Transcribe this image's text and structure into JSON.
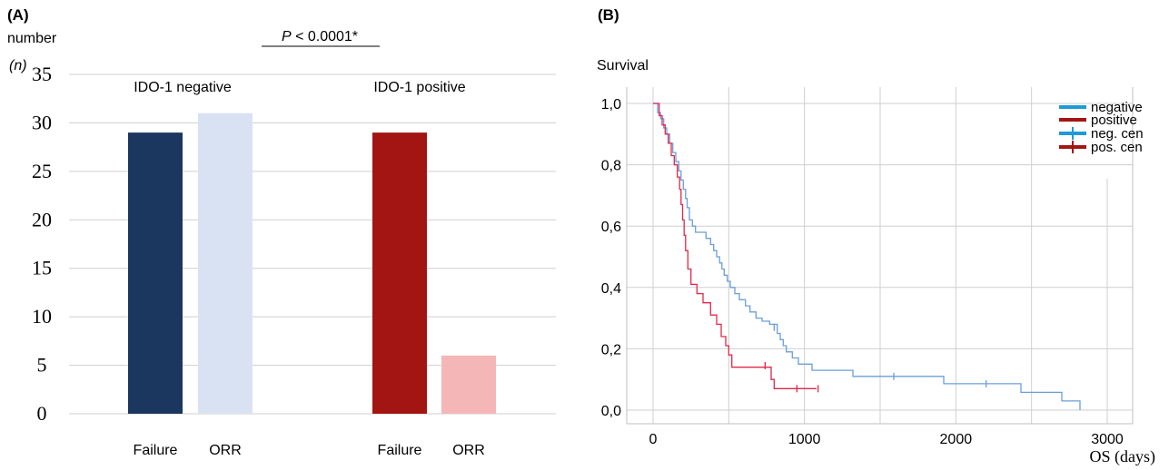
{
  "chart_data": [
    {
      "panel_label": "(A)",
      "type": "bar",
      "ylabel_line1": "number",
      "ylabel_line2": "(n)",
      "ylim": [
        0,
        35
      ],
      "yticks": [
        "0",
        "5",
        "10",
        "15",
        "20",
        "25",
        "30",
        "35"
      ],
      "grid": true,
      "groups": [
        {
          "label": "IDO-1 negative",
          "bars": [
            {
              "category": "Failure",
              "value": 29,
              "color": "#1b365f"
            },
            {
              "category": "ORR",
              "value": 31,
              "color": "#d9e2f3"
            }
          ]
        },
        {
          "label": "IDO-1 positive",
          "bars": [
            {
              "category": "Failure",
              "value": 29,
              "color": "#a31512"
            },
            {
              "category": "ORR",
              "value": 6,
              "color": "#f4b6b6"
            }
          ]
        }
      ],
      "annotation": {
        "p_symbol": "P",
        "p_text": " < 0.0001*"
      }
    },
    {
      "panel_label": "(B)",
      "type": "line",
      "ylabel": "Survival",
      "xlabel": "OS (days)",
      "xlim": [
        0,
        3000
      ],
      "ylim": [
        0,
        1.0
      ],
      "xticks": [
        "0",
        "1000",
        "2000",
        "3000"
      ],
      "yticks": [
        "0,0",
        "0,2",
        "0,4",
        "0,6",
        "0,8",
        "1,0"
      ],
      "grid": true,
      "legend_position": "top-right",
      "legend": [
        {
          "label": "negative",
          "color": "#1e9ad6",
          "kind": "line"
        },
        {
          "label": "positive",
          "color": "#a31512",
          "kind": "line"
        },
        {
          "label": "neg. cen",
          "color": "#1e9ad6",
          "kind": "censor"
        },
        {
          "label": "pos. cen",
          "color": "#a31512",
          "kind": "censor"
        }
      ],
      "series": [
        {
          "name": "negative",
          "color": "#6a9fd8",
          "steps": [
            [
              0,
              1.0
            ],
            [
              30,
              0.97
            ],
            [
              50,
              0.95
            ],
            [
              70,
              0.92
            ],
            [
              90,
              0.9
            ],
            [
              110,
              0.87
            ],
            [
              130,
              0.84
            ],
            [
              150,
              0.81
            ],
            [
              170,
              0.78
            ],
            [
              185,
              0.75
            ],
            [
              200,
              0.72
            ],
            [
              215,
              0.69
            ],
            [
              225,
              0.66
            ],
            [
              240,
              0.62
            ],
            [
              260,
              0.6
            ],
            [
              280,
              0.58
            ],
            [
              320,
              0.58
            ],
            [
              350,
              0.56
            ],
            [
              380,
              0.54
            ],
            [
              400,
              0.52
            ],
            [
              420,
              0.5
            ],
            [
              440,
              0.48
            ],
            [
              455,
              0.46
            ],
            [
              470,
              0.44
            ],
            [
              490,
              0.42
            ],
            [
              510,
              0.4
            ],
            [
              540,
              0.38
            ],
            [
              570,
              0.36
            ],
            [
              610,
              0.34
            ],
            [
              640,
              0.32
            ],
            [
              680,
              0.3
            ],
            [
              720,
              0.29
            ],
            [
              770,
              0.28
            ],
            [
              820,
              0.25
            ],
            [
              840,
              0.23
            ],
            [
              860,
              0.21
            ],
            [
              880,
              0.19
            ],
            [
              920,
              0.17
            ],
            [
              960,
              0.15
            ],
            [
              1050,
              0.13
            ],
            [
              1320,
              0.11
            ],
            [
              1920,
              0.086
            ],
            [
              2430,
              0.058
            ],
            [
              2700,
              0.03
            ],
            [
              2820,
              0.0
            ]
          ],
          "censored": [
            [
              800,
              0.27
            ],
            [
              1590,
              0.11
            ],
            [
              2200,
              0.086
            ]
          ]
        },
        {
          "name": "positive",
          "color": "#e0284a",
          "steps": [
            [
              0,
              1.0
            ],
            [
              40,
              0.96
            ],
            [
              60,
              0.93
            ],
            [
              80,
              0.9
            ],
            [
              100,
              0.87
            ],
            [
              120,
              0.83
            ],
            [
              140,
              0.8
            ],
            [
              160,
              0.76
            ],
            [
              175,
              0.72
            ],
            [
              185,
              0.67
            ],
            [
              195,
              0.62
            ],
            [
              205,
              0.57
            ],
            [
              215,
              0.52
            ],
            [
              230,
              0.46
            ],
            [
              250,
              0.41
            ],
            [
              290,
              0.38
            ],
            [
              330,
              0.35
            ],
            [
              380,
              0.31
            ],
            [
              420,
              0.28
            ],
            [
              450,
              0.24
            ],
            [
              480,
              0.21
            ],
            [
              500,
              0.18
            ],
            [
              520,
              0.14
            ],
            [
              720,
              0.14
            ],
            [
              780,
              0.1
            ],
            [
              800,
              0.07
            ],
            [
              1080,
              0.07
            ]
          ],
          "censored": [
            [
              740,
              0.145
            ],
            [
              950,
              0.07
            ],
            [
              1090,
              0.07
            ]
          ]
        }
      ]
    }
  ]
}
